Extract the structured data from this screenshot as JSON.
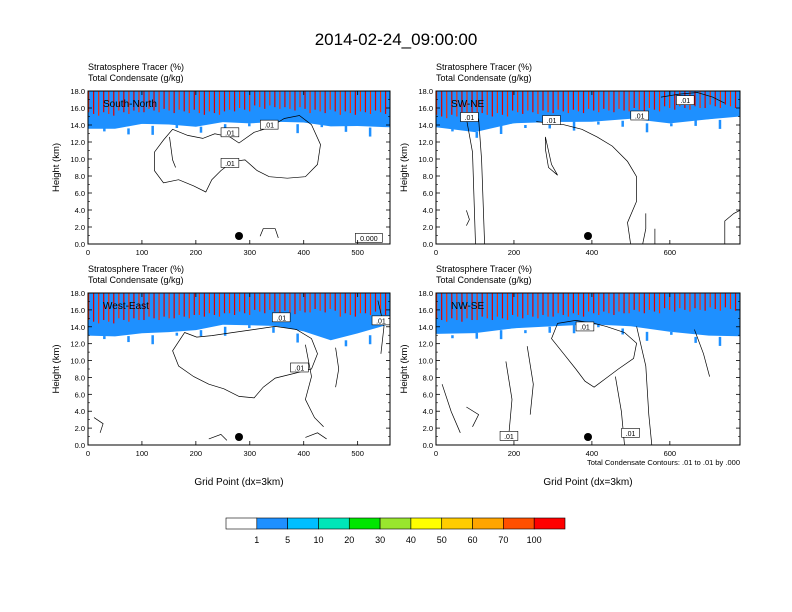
{
  "title": "2014-02-24_09:00:00",
  "panel_header": {
    "line1": "Stratosphere Tracer   (%)",
    "line2": "Total Condensate   (g/kg)"
  },
  "chart_data": [
    {
      "type": "heatmap",
      "name": "South-North",
      "xlabel": "",
      "ylabel": "Height (km)",
      "xlim": [
        0,
        560
      ],
      "ylim": [
        0,
        18
      ],
      "xticks": [
        0,
        100,
        200,
        300,
        400,
        500
      ],
      "yticks": [
        0.0,
        2.0,
        4.0,
        6.0,
        8.0,
        10.0,
        12.0,
        14.0,
        16.0,
        18.0
      ],
      "marker_x": 280,
      "contour_labels": [
        ".01",
        ".01",
        ".01",
        "0.000"
      ],
      "tracer_profile": {
        "x": [
          0,
          50,
          100,
          150,
          200,
          250,
          300,
          350,
          400,
          450,
          500,
          560
        ],
        "base": [
          13.4,
          13.6,
          13.9,
          14.0,
          13.8,
          14.1,
          14.2,
          14.3,
          14.1,
          13.9,
          13.7,
          13.6
        ],
        "top": [
          15.9,
          16.1,
          16.3,
          16.2,
          16.0,
          16.4,
          16.7,
          16.5,
          16.2,
          16.0,
          16.1,
          16.0
        ]
      }
    },
    {
      "type": "heatmap",
      "name": "SW-NE",
      "xlabel": "",
      "ylabel": "Height (km)",
      "xlim": [
        0,
        780
      ],
      "ylim": [
        0,
        18
      ],
      "xticks": [
        0,
        200,
        400,
        600
      ],
      "yticks": [
        0.0,
        2.0,
        4.0,
        6.0,
        8.0,
        10.0,
        12.0,
        14.0,
        16.0,
        18.0
      ],
      "marker_x": 390,
      "contour_labels": [
        ".01",
        ".01",
        ".01",
        ".01"
      ],
      "tracer_profile": {
        "x": [
          0,
          100,
          200,
          300,
          400,
          500,
          600,
          700,
          780
        ],
        "base": [
          13.6,
          13.2,
          14.0,
          14.3,
          14.4,
          14.5,
          14.2,
          14.6,
          14.8
        ],
        "top": [
          15.6,
          15.8,
          16.1,
          16.2,
          16.3,
          16.4,
          16.6,
          16.8,
          16.9
        ]
      }
    },
    {
      "type": "heatmap",
      "name": "West-East",
      "xlabel": "Grid Point (dx=3km)",
      "ylabel": "Height (km)",
      "xlim": [
        0,
        560
      ],
      "ylim": [
        0,
        18
      ],
      "xticks": [
        0,
        100,
        200,
        300,
        400,
        500
      ],
      "yticks": [
        0.0,
        2.0,
        4.0,
        6.0,
        8.0,
        10.0,
        12.0,
        14.0,
        16.0,
        18.0
      ],
      "marker_x": 280,
      "contour_labels": [
        ".01",
        ".01",
        ".01"
      ],
      "tracer_profile": {
        "x": [
          0,
          50,
          100,
          150,
          200,
          250,
          300,
          350,
          400,
          450,
          500,
          560
        ],
        "base": [
          12.8,
          12.9,
          13.0,
          13.3,
          13.6,
          14.0,
          14.2,
          14.0,
          13.2,
          12.4,
          13.0,
          14.2
        ],
        "top": [
          15.2,
          15.4,
          15.6,
          15.8,
          16.0,
          16.2,
          16.4,
          16.3,
          16.5,
          16.0,
          16.2,
          16.4
        ]
      }
    },
    {
      "type": "heatmap",
      "name": "NW-SE",
      "xlabel": "Grid Point (dx=3km)",
      "ylabel": "Height (km)",
      "xlim": [
        0,
        780
      ],
      "ylim": [
        0,
        18
      ],
      "xticks": [
        0,
        200,
        400,
        600
      ],
      "yticks": [
        0.0,
        2.0,
        4.0,
        6.0,
        8.0,
        10.0,
        12.0,
        14.0,
        16.0,
        18.0
      ],
      "marker_x": 390,
      "contour_labels": [
        ".01",
        ".01",
        ".01"
      ],
      "footnote": "Total Condensate Contours: .01 to .01 by .000",
      "tracer_profile": {
        "x": [
          0,
          100,
          200,
          300,
          400,
          500,
          600,
          700,
          780
        ],
        "base": [
          13.0,
          13.3,
          13.6,
          14.0,
          14.3,
          13.8,
          13.4,
          12.8,
          12.6
        ],
        "top": [
          15.4,
          15.6,
          15.8,
          16.0,
          16.2,
          16.4,
          16.6,
          16.7,
          16.9
        ]
      }
    }
  ],
  "colorbar": {
    "labels": [
      "1",
      "5",
      "10",
      "20",
      "30",
      "40",
      "50",
      "60",
      "70",
      "100"
    ],
    "colors": [
      "#ffffff",
      "#1e90ff",
      "#00bfff",
      "#00e6b8",
      "#00e600",
      "#99e62e",
      "#ffff00",
      "#ffcc00",
      "#ffa500",
      "#ff5000",
      "#ff0000"
    ]
  }
}
